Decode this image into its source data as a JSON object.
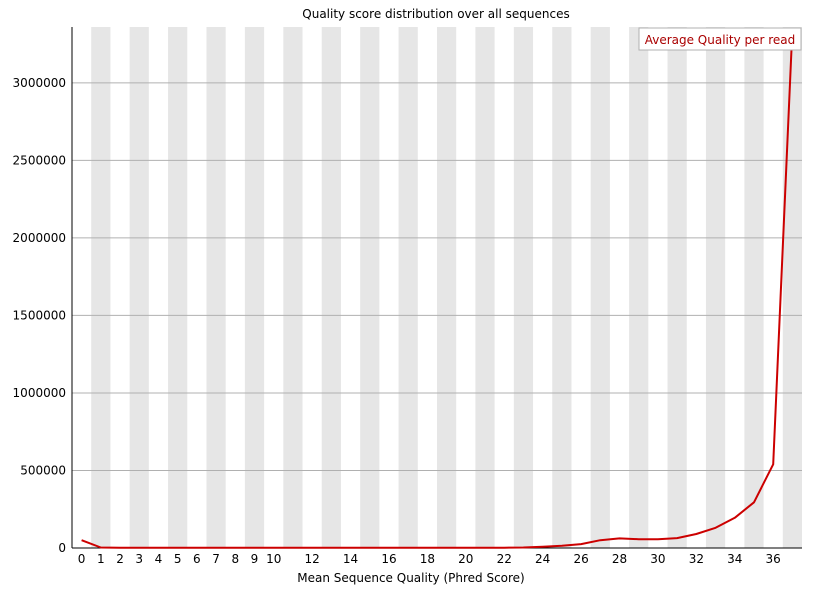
{
  "chart_data": {
    "type": "line",
    "title": "Quality score distribution over all sequences",
    "xlabel": "Mean Sequence Quality (Phred Score)",
    "ylabel": "",
    "x": [
      0,
      1,
      2,
      3,
      4,
      5,
      6,
      7,
      8,
      9,
      10,
      11,
      12,
      13,
      14,
      15,
      16,
      17,
      18,
      19,
      20,
      21,
      22,
      23,
      24,
      25,
      26,
      27,
      28,
      29,
      30,
      31,
      32,
      33,
      34,
      35,
      36,
      37
    ],
    "x_tick_labels": [
      "0",
      "1",
      "2",
      "3",
      "4",
      "5",
      "6",
      "7",
      "8",
      "9",
      "10",
      "12",
      "14",
      "16",
      "18",
      "20",
      "22",
      "24",
      "26",
      "28",
      "30",
      "32",
      "34",
      "36"
    ],
    "x_tick_values": [
      0,
      1,
      2,
      3,
      4,
      5,
      6,
      7,
      8,
      9,
      10,
      12,
      14,
      16,
      18,
      20,
      22,
      24,
      26,
      28,
      30,
      32,
      34,
      36
    ],
    "y_ticks": [
      0,
      500000,
      1000000,
      1500000,
      2000000,
      2500000,
      3000000
    ],
    "y_tick_labels": [
      "0",
      "500000",
      "1000000",
      "1500000",
      "2000000",
      "2500000",
      "3000000"
    ],
    "ylim": [
      0,
      3360000
    ],
    "xlim": [
      -0.5,
      37.5
    ],
    "series": [
      {
        "name": "Average Quality per read",
        "color": "#cc0000",
        "values": [
          50000,
          3000,
          2000,
          2000,
          2000,
          2000,
          2000,
          2000,
          2000,
          2000,
          2000,
          2000,
          2000,
          2000,
          2000,
          2000,
          2000,
          2000,
          2000,
          2000,
          2000,
          2000,
          2000,
          3000,
          8000,
          14000,
          25000,
          50000,
          62000,
          57000,
          57000,
          64000,
          90000,
          130000,
          195000,
          295000,
          540000,
          3350000
        ]
      }
    ],
    "legend": {
      "placement": "top-right",
      "entries": [
        "Average Quality per read"
      ]
    },
    "grid": true,
    "colors": {
      "stripe": "#e6e6e6",
      "gridline": "#b0b0b0",
      "axis": "#000000",
      "line": "#cc0000",
      "legend_text": "#aa0000"
    }
  }
}
